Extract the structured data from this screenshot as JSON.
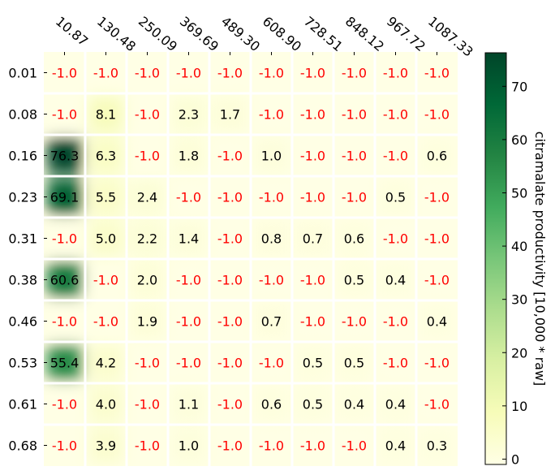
{
  "chart_data": {
    "type": "heatmap",
    "x_tick_labels": [
      "10.87",
      "130.48",
      "250.09",
      "369.69",
      "489.30",
      "608.90",
      "728.51",
      "848.12",
      "967.72",
      "1087.33"
    ],
    "y_tick_labels": [
      "0.01",
      "0.08",
      "0.16",
      "0.23",
      "0.31",
      "0.38",
      "0.46",
      "0.53",
      "0.61",
      "0.68"
    ],
    "cell_labels": [
      [
        "-1.0",
        "-1.0",
        "-1.0",
        "-1.0",
        "-1.0",
        "-1.0",
        "-1.0",
        "-1.0",
        "-1.0",
        "-1.0"
      ],
      [
        "-1.0",
        "8.1",
        "-1.0",
        "2.3",
        "1.7",
        "-1.0",
        "-1.0",
        "-1.0",
        "-1.0",
        "-1.0"
      ],
      [
        "76.3",
        "6.3",
        "-1.0",
        "1.8",
        "-1.0",
        "1.0",
        "-1.0",
        "-1.0",
        "-1.0",
        "0.6"
      ],
      [
        "69.1",
        "5.5",
        "2.4",
        "-1.0",
        "-1.0",
        "-1.0",
        "-1.0",
        "-1.0",
        "0.5",
        "-1.0"
      ],
      [
        "-1.0",
        "5.0",
        "2.2",
        "1.4",
        "-1.0",
        "0.8",
        "0.7",
        "0.6",
        "-1.0",
        "-1.0"
      ],
      [
        "60.6",
        "-1.0",
        "2.0",
        "-1.0",
        "-1.0",
        "-1.0",
        "-1.0",
        "0.5",
        "0.4",
        "-1.0"
      ],
      [
        "-1.0",
        "-1.0",
        "1.9",
        "-1.0",
        "-1.0",
        "0.7",
        "-1.0",
        "-1.0",
        "-1.0",
        "0.4"
      ],
      [
        "55.4",
        "4.2",
        "-1.0",
        "-1.0",
        "-1.0",
        "-1.0",
        "0.5",
        "0.5",
        "-1.0",
        "-1.0"
      ],
      [
        "-1.0",
        "4.0",
        "-1.0",
        "1.1",
        "-1.0",
        "0.6",
        "0.5",
        "0.4",
        "0.4",
        "-1.0"
      ],
      [
        "-1.0",
        "3.9",
        "-1.0",
        "1.0",
        "-1.0",
        "-1.0",
        "-1.0",
        "-1.0",
        "0.4",
        "0.3"
      ]
    ],
    "values": [
      [
        -1.0,
        -1.0,
        -1.0,
        -1.0,
        -1.0,
        -1.0,
        -1.0,
        -1.0,
        -1.0,
        -1.0
      ],
      [
        -1.0,
        8.1,
        -1.0,
        2.3,
        1.7,
        -1.0,
        -1.0,
        -1.0,
        -1.0,
        -1.0
      ],
      [
        76.3,
        6.3,
        -1.0,
        1.8,
        -1.0,
        1.0,
        -1.0,
        -1.0,
        -1.0,
        0.6
      ],
      [
        69.1,
        5.5,
        2.4,
        -1.0,
        -1.0,
        -1.0,
        -1.0,
        -1.0,
        0.5,
        -1.0
      ],
      [
        -1.0,
        5.0,
        2.2,
        1.4,
        -1.0,
        0.8,
        0.7,
        0.6,
        -1.0,
        -1.0
      ],
      [
        60.6,
        -1.0,
        2.0,
        -1.0,
        -1.0,
        -1.0,
        -1.0,
        0.5,
        0.4,
        -1.0
      ],
      [
        -1.0,
        -1.0,
        1.9,
        -1.0,
        -1.0,
        0.7,
        -1.0,
        -1.0,
        -1.0,
        0.4
      ],
      [
        55.4,
        4.2,
        -1.0,
        -1.0,
        -1.0,
        -1.0,
        0.5,
        0.5,
        -1.0,
        -1.0
      ],
      [
        -1.0,
        4.0,
        -1.0,
        1.1,
        -1.0,
        0.6,
        0.5,
        0.4,
        0.4,
        -1.0
      ],
      [
        -1.0,
        3.9,
        -1.0,
        1.0,
        -1.0,
        -1.0,
        -1.0,
        -1.0,
        0.4,
        0.3
      ]
    ],
    "colorbar": {
      "label": "citramalate productivity [10,000 * raw]",
      "ticks": [
        "0",
        "10",
        "20",
        "30",
        "40",
        "50",
        "60",
        "70"
      ],
      "tick_values": [
        0,
        10,
        20,
        30,
        40,
        50,
        60,
        70
      ],
      "range": [
        -1.0,
        76.3
      ],
      "colormap": "YlGn",
      "colors": [
        "#ffffe5",
        "#f7fcb9",
        "#d9f0a3",
        "#addd8e",
        "#78c679",
        "#41ab5d",
        "#238443",
        "#006837",
        "#004529"
      ]
    },
    "negative_label_color": "#ff0000",
    "label_color": "#000000",
    "grid": false,
    "title": "",
    "xlabel": "",
    "ylabel": ""
  }
}
